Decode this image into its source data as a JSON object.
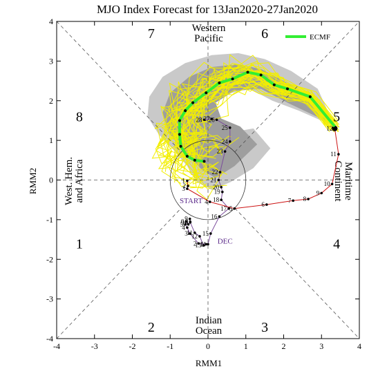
{
  "chart_data": {
    "type": "line",
    "title": "MJO Index Forecast for 13Jan2020-27Jan2020",
    "xlabel": "RMM1",
    "ylabel": "RMM2",
    "xlim": [
      -4,
      4
    ],
    "ylim": [
      -4,
      4
    ],
    "xticks": [
      -4,
      -3,
      -2,
      -1,
      0,
      1,
      2,
      3,
      4
    ],
    "yticks": [
      -4,
      -3,
      -2,
      -1,
      0,
      1,
      2,
      3,
      4
    ],
    "grid": "dashed axes and diagonals",
    "unit_circle_radius": 1,
    "legend": {
      "position": "top-right",
      "entries": [
        {
          "name": "ECMF",
          "color": "#33ee33"
        }
      ]
    },
    "phase_labels": [
      {
        "text": "1",
        "x": -3.4,
        "y": -1.6
      },
      {
        "text": "2",
        "x": -1.5,
        "y": -3.7
      },
      {
        "text": "3",
        "x": 1.5,
        "y": -3.7
      },
      {
        "text": "4",
        "x": 3.4,
        "y": -1.6
      },
      {
        "text": "5",
        "x": 3.4,
        "y": 1.6
      },
      {
        "text": "6",
        "x": 1.5,
        "y": 3.7
      },
      {
        "text": "7",
        "x": -1.5,
        "y": 3.7
      },
      {
        "text": "8",
        "x": -3.4,
        "y": 1.6
      }
    ],
    "region_labels": {
      "top": [
        "Western",
        "Pacific"
      ],
      "bottom": [
        "Indian",
        "Ocean"
      ],
      "left": [
        "West. Hem.",
        "and Africa"
      ],
      "right": [
        "Maritime",
        "Continent"
      ]
    },
    "segment_labels": [
      {
        "text": "START",
        "x": -0.75,
        "y": -0.58,
        "color": "#5b2a8a"
      },
      {
        "text": "DEC",
        "x": 0.25,
        "y": -1.6,
        "color": "#5b2a8a"
      }
    ],
    "series": [
      {
        "name": "December",
        "color": "#7b4c9c",
        "points": [
          {
            "label": "1",
            "x": -0.05,
            "y": -1.62
          },
          {
            "label": "2",
            "x": -0.25,
            "y": -1.6
          },
          {
            "label": "3",
            "x": -0.48,
            "y": -1.35
          },
          {
            "label": "4",
            "x": -0.55,
            "y": -1.2
          },
          {
            "label": "5",
            "x": -0.6,
            "y": -1.12
          },
          {
            "label": "6",
            "x": -0.58,
            "y": -1.05
          },
          {
            "label": "7",
            "x": -0.52,
            "y": -1.12
          },
          {
            "label": "8",
            "x": -0.47,
            "y": -1.05
          },
          {
            "label": "9",
            "x": -0.48,
            "y": -0.98
          },
          {
            "label": "10",
            "x": -0.47,
            "y": -1.07
          },
          {
            "label": "11",
            "x": -0.35,
            "y": -1.33
          },
          {
            "label": "12",
            "x": -0.22,
            "y": -1.42
          },
          {
            "label": "13",
            "x": -0.12,
            "y": -1.65
          },
          {
            "label": "14",
            "x": 0.0,
            "y": -1.62
          },
          {
            "label": "15",
            "x": 0.07,
            "y": -1.35
          },
          {
            "label": "16",
            "x": 0.3,
            "y": -0.92
          },
          {
            "label": "17",
            "x": 0.55,
            "y": -0.72
          },
          {
            "label": "18",
            "x": 0.35,
            "y": -0.5
          },
          {
            "label": "19",
            "x": 0.38,
            "y": -0.3
          },
          {
            "label": "20",
            "x": 0.35,
            "y": -0.18
          },
          {
            "label": "21",
            "x": 0.28,
            "y": 0.0
          },
          {
            "label": "22",
            "x": 0.32,
            "y": 0.2
          },
          {
            "label": "23",
            "x": 0.45,
            "y": 0.72
          },
          {
            "label": "24",
            "x": 0.58,
            "y": 0.97
          },
          {
            "label": "25",
            "x": 0.58,
            "y": 1.32
          },
          {
            "label": "26",
            "x": 0.23,
            "y": 1.52
          },
          {
            "label": "27",
            "x": 0.1,
            "y": 1.54
          },
          {
            "label": "28",
            "x": -0.1,
            "y": 1.52
          }
        ]
      },
      {
        "name": "January",
        "color": "#cc1111",
        "points": [
          {
            "label": "1",
            "x": -0.55,
            "y": -0.02
          },
          {
            "label": "2",
            "x": -0.53,
            "y": -0.15
          },
          {
            "label": "3",
            "x": -0.55,
            "y": -0.22
          },
          {
            "label": "4",
            "x": 0.05,
            "y": -0.55
          },
          {
            "label": "5",
            "x": 0.7,
            "y": -0.72
          },
          {
            "label": "6",
            "x": 1.55,
            "y": -0.62
          },
          {
            "label": "7",
            "x": 2.25,
            "y": -0.52
          },
          {
            "label": "8",
            "x": 2.65,
            "y": -0.48
          },
          {
            "label": "9",
            "x": 3.0,
            "y": -0.33
          },
          {
            "label": "10",
            "x": 3.28,
            "y": -0.1
          },
          {
            "label": "11",
            "x": 3.45,
            "y": 0.65
          },
          {
            "label": "12",
            "x": 3.35,
            "y": 1.3
          }
        ]
      },
      {
        "name": "ECMF",
        "color": "#33ee33",
        "points": [
          {
            "x": 3.35,
            "y": 1.35
          },
          {
            "x": 2.7,
            "y": 2.1
          },
          {
            "x": 2.1,
            "y": 2.3
          },
          {
            "x": 1.75,
            "y": 2.4
          },
          {
            "x": 1.4,
            "y": 2.65
          },
          {
            "x": 1.05,
            "y": 2.72
          },
          {
            "x": 0.65,
            "y": 2.55
          },
          {
            "x": 0.3,
            "y": 2.45
          },
          {
            "x": -0.05,
            "y": 2.2
          },
          {
            "x": -0.4,
            "y": 1.95
          },
          {
            "x": -0.6,
            "y": 1.75
          },
          {
            "x": -0.75,
            "y": 1.5
          },
          {
            "x": -0.75,
            "y": 1.15
          },
          {
            "x": -0.72,
            "y": 0.85
          },
          {
            "x": -0.55,
            "y": 0.6
          },
          {
            "x": -0.35,
            "y": 0.5
          },
          {
            "x": -0.1,
            "y": 0.47
          }
        ]
      }
    ]
  }
}
